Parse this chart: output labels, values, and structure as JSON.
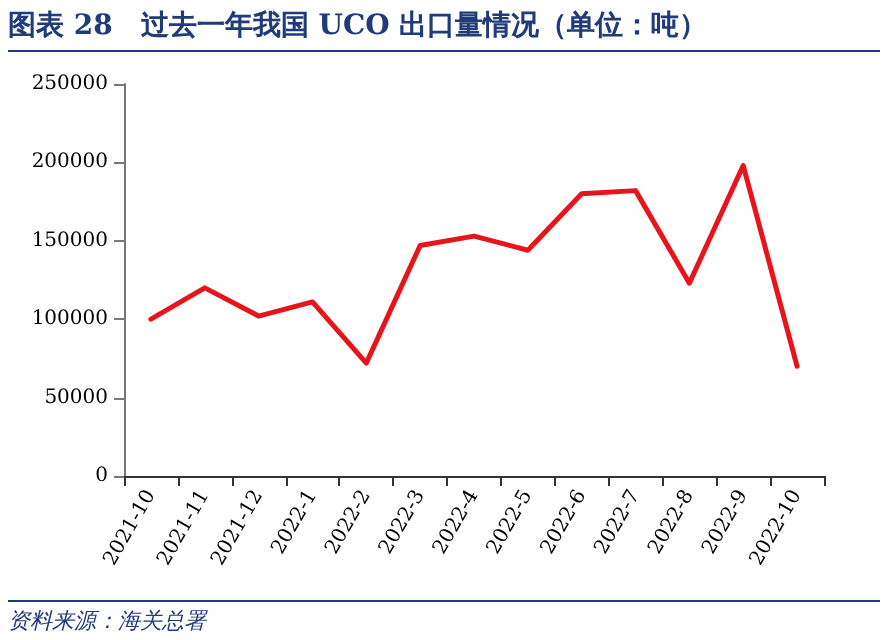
{
  "chart_data": {
    "type": "line",
    "title": "图表 28　过去一年我国 UCO 出口量情况（单位：吨）",
    "annotations": [
      "资料来源：海关总署"
    ],
    "categories": [
      "2021-10",
      "2021-11",
      "2021-12",
      "2022-1",
      "2022-2",
      "2022-3",
      "2022-4",
      "2022-5",
      "2022-6",
      "2022-7",
      "2022-8",
      "2022-9",
      "2022-10"
    ],
    "series": [
      {
        "color": "#e8141c",
        "values": [
          100000,
          120000,
          102000,
          111000,
          72000,
          147000,
          153000,
          144000,
          180000,
          182000,
          123000,
          198000,
          70000
        ]
      }
    ],
    "ylim": [
      0,
      250000
    ],
    "yticks": [
      0,
      50000,
      100000,
      150000,
      200000,
      250000
    ],
    "grid": false,
    "marker": "none",
    "line_style": "solid"
  }
}
